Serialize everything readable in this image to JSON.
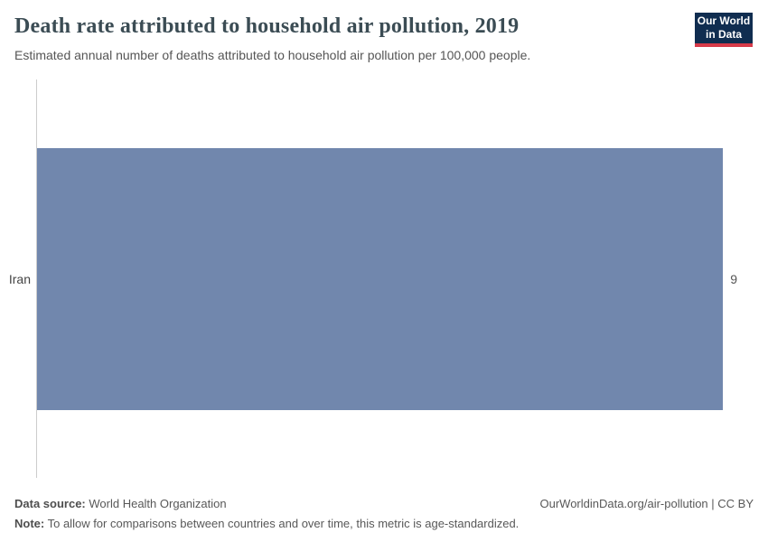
{
  "header": {
    "title": "Death rate attributed to household air pollution, 2019",
    "subtitle": "Estimated annual number of deaths attributed to household air pollution per 100,000 people.",
    "logo": {
      "line1": "Our World",
      "line2": "in Data",
      "bg_color": "#102d50",
      "stripe_color": "#d73a49"
    }
  },
  "chart_data": {
    "type": "bar",
    "orientation": "horizontal",
    "title": "Death rate attributed to household air pollution, 2019",
    "categories": [
      "Iran"
    ],
    "values": [
      9
    ],
    "value_labels": [
      "9"
    ],
    "xlabel": "",
    "ylabel": "",
    "xlim": [
      0,
      9
    ],
    "grid": false,
    "legend": false,
    "bar_color": "#7187ad",
    "axis_line_color": "#cccccc"
  },
  "footer": {
    "source_label": "Data source:",
    "source_value": "World Health Organization",
    "attribution": "OurWorldinData.org/air-pollution | CC BY",
    "note_label": "Note:",
    "note_value": "To allow for comparisons between countries and over time, this metric is age-standardized."
  }
}
